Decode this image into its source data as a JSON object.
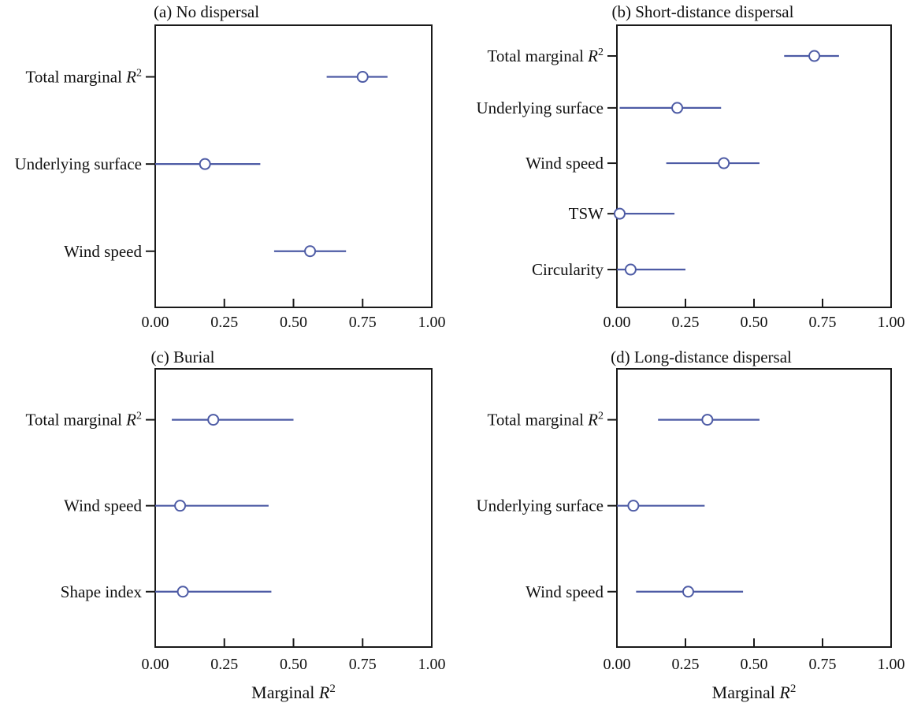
{
  "figure": {
    "background": "#ffffff",
    "accent_color": "#4d5ba5",
    "axis_color": "#1a1a1a",
    "shared_xlabel": "Marginal R²"
  },
  "chart_data": [
    {
      "type": "scatter",
      "variant": "dot-and-error-bar",
      "panel": "a",
      "title": "(a) No dispersal",
      "xlabel": "",
      "xlim": [
        0,
        1
      ],
      "x_tick_values": [
        0,
        0.25,
        0.5,
        0.75,
        1
      ],
      "x_tick_labels": [
        "0.00",
        "0.25",
        "0.50",
        "0.75",
        "1.00"
      ],
      "categories": [
        "Total marginal R²",
        "Underlying surface",
        "Wind speed"
      ],
      "rows": [
        {
          "label": "Total marginal R²",
          "estimate": 0.75,
          "ci_low": 0.62,
          "ci_high": 0.84
        },
        {
          "label": "Underlying surface",
          "estimate": 0.18,
          "ci_low": 0.0,
          "ci_high": 0.38
        },
        {
          "label": "Wind speed",
          "estimate": 0.56,
          "ci_low": 0.43,
          "ci_high": 0.69
        }
      ]
    },
    {
      "type": "scatter",
      "variant": "dot-and-error-bar",
      "panel": "b",
      "title": "(b) Short-distance dispersal",
      "xlabel": "",
      "xlim": [
        0,
        1
      ],
      "x_tick_values": [
        0,
        0.25,
        0.5,
        0.75,
        1
      ],
      "x_tick_labels": [
        "0.00",
        "0.25",
        "0.50",
        "0.75",
        "1.00"
      ],
      "categories": [
        "Total marginal R²",
        "Underlying surface",
        "Wind speed",
        "TSW",
        "Circularity"
      ],
      "rows": [
        {
          "label": "Total marginal R²",
          "estimate": 0.72,
          "ci_low": 0.61,
          "ci_high": 0.81
        },
        {
          "label": "Underlying surface",
          "estimate": 0.22,
          "ci_low": 0.01,
          "ci_high": 0.38
        },
        {
          "label": "Wind speed",
          "estimate": 0.39,
          "ci_low": 0.18,
          "ci_high": 0.52
        },
        {
          "label": "TSW",
          "estimate": 0.01,
          "ci_low": 0.0,
          "ci_high": 0.21
        },
        {
          "label": "Circularity",
          "estimate": 0.05,
          "ci_low": 0.0,
          "ci_high": 0.25
        }
      ]
    },
    {
      "type": "scatter",
      "variant": "dot-and-error-bar",
      "panel": "c",
      "title": "(c) Burial",
      "xlabel": "Marginal R²",
      "xlim": [
        0,
        1
      ],
      "x_tick_values": [
        0,
        0.25,
        0.5,
        0.75,
        1
      ],
      "x_tick_labels": [
        "0.00",
        "0.25",
        "0.50",
        "0.75",
        "1.00"
      ],
      "categories": [
        "Total marginal R²",
        "Wind speed",
        "Shape index"
      ],
      "rows": [
        {
          "label": "Total marginal R²",
          "estimate": 0.21,
          "ci_low": 0.06,
          "ci_high": 0.5
        },
        {
          "label": "Wind speed",
          "estimate": 0.09,
          "ci_low": 0.0,
          "ci_high": 0.41
        },
        {
          "label": "Shape index",
          "estimate": 0.1,
          "ci_low": 0.0,
          "ci_high": 0.42
        }
      ]
    },
    {
      "type": "scatter",
      "variant": "dot-and-error-bar",
      "panel": "d",
      "title": "(d) Long-distance dispersal",
      "xlabel": "Marginal R²",
      "xlim": [
        0,
        1
      ],
      "x_tick_values": [
        0,
        0.25,
        0.5,
        0.75,
        1
      ],
      "x_tick_labels": [
        "0.00",
        "0.25",
        "0.50",
        "0.75",
        "1.00"
      ],
      "categories": [
        "Total marginal R²",
        "Underlying surface",
        "Wind speed"
      ],
      "rows": [
        {
          "label": "Total marginal R²",
          "estimate": 0.33,
          "ci_low": 0.15,
          "ci_high": 0.52
        },
        {
          "label": "Underlying surface",
          "estimate": 0.06,
          "ci_low": 0.0,
          "ci_high": 0.32
        },
        {
          "label": "Wind speed",
          "estimate": 0.26,
          "ci_low": 0.07,
          "ci_high": 0.46
        }
      ]
    }
  ]
}
